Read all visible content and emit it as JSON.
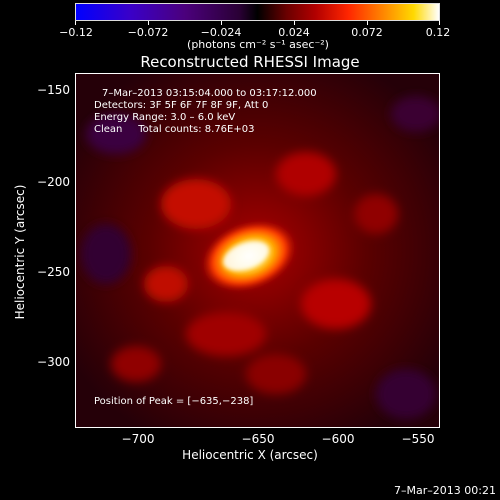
{
  "colorbar": {
    "ticks": [
      "−0.12",
      "−0.072",
      "−0.024",
      "0.024",
      "0.072",
      "0.12"
    ],
    "label": "(photons cm⁻² s⁻¹ asec⁻²)"
  },
  "plot": {
    "title": "Reconstructed RHESSI Image",
    "annotations": {
      "time_range": "7–Mar–2013 03:15:04.000 to 03:17:12.000",
      "detectors": "Detectors: 3F 5F 6F 7F 8F 9F, Att 0",
      "energy_range": "Energy Range: 3.0 – 6.0 keV",
      "clean": "Clean     Total counts: 8.76E+03",
      "peak": "Position of Peak = [−635,−238]"
    },
    "x_axis": {
      "label": "Heliocentric X (arcsec)",
      "ticks": [
        "−700",
        "−650",
        "−600",
        "−550"
      ]
    },
    "y_axis": {
      "label": "Heliocentric Y (arcsec)",
      "ticks": [
        "−150",
        "−200",
        "−250",
        "−300"
      ]
    }
  },
  "timestamp": "7–Mar–2013 00:21",
  "colors": {
    "peak": "#ffffff",
    "hot": "#ffd900",
    "mid": "#ff2600",
    "low": "#6a0000",
    "background": "#000000"
  }
}
